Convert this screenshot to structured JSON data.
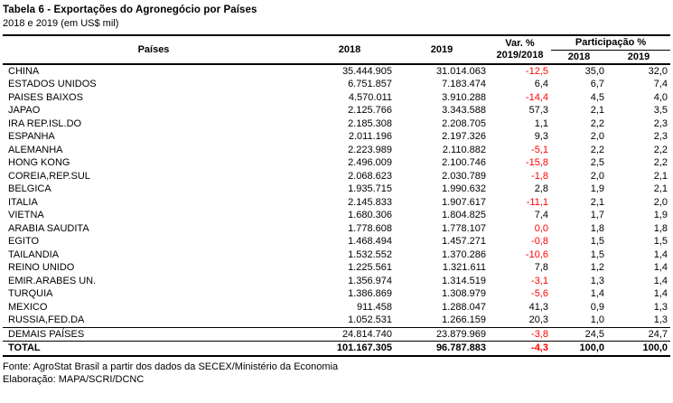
{
  "title": "Tabela 6 - Exportações do Agronegócio por Países",
  "subtitle": "2018 e 2019 (em US$ mil)",
  "colors": {
    "negative_value": "#FF0000",
    "text": "#000000",
    "border": "#000000"
  },
  "table": {
    "headers": {
      "paises": "Países",
      "col_2018": "2018",
      "col_2019": "2019",
      "var_line1": "Var. %",
      "var_line2": "2019/2018",
      "part_group": "Participação %",
      "part_2018": "2018",
      "part_2019": "2019"
    },
    "rows": [
      {
        "pais": "CHINA",
        "v2018": "35.444.905",
        "v2019": "31.014.063",
        "var": "-12,5",
        "var_red": true,
        "p2018": "35,0",
        "p2019": "32,0",
        "style": ""
      },
      {
        "pais": "ESTADOS UNIDOS",
        "v2018": "6.751.857",
        "v2019": "7.183.474",
        "var": "6,4",
        "var_red": false,
        "p2018": "6,7",
        "p2019": "7,4",
        "style": ""
      },
      {
        "pais": "PAISES BAIXOS",
        "v2018": "4.570.011",
        "v2019": "3.910.288",
        "var": "-14,4",
        "var_red": true,
        "p2018": "4,5",
        "p2019": "4,0",
        "style": ""
      },
      {
        "pais": "JAPAO",
        "v2018": "2.125.766",
        "v2019": "3.343.588",
        "var": "57,3",
        "var_red": false,
        "p2018": "2,1",
        "p2019": "3,5",
        "style": ""
      },
      {
        "pais": "IRA REP.ISL.DO",
        "v2018": "2.185.308",
        "v2019": "2.208.705",
        "var": "1,1",
        "var_red": false,
        "p2018": "2,2",
        "p2019": "2,3",
        "style": ""
      },
      {
        "pais": "ESPANHA",
        "v2018": "2.011.196",
        "v2019": "2.197.326",
        "var": "9,3",
        "var_red": false,
        "p2018": "2,0",
        "p2019": "2,3",
        "style": ""
      },
      {
        "pais": "ALEMANHA",
        "v2018": "2.223.989",
        "v2019": "2.110.882",
        "var": "-5,1",
        "var_red": true,
        "p2018": "2,2",
        "p2019": "2,2",
        "style": ""
      },
      {
        "pais": "HONG KONG",
        "v2018": "2.496.009",
        "v2019": "2.100.746",
        "var": "-15,8",
        "var_red": true,
        "p2018": "2,5",
        "p2019": "2,2",
        "style": ""
      },
      {
        "pais": "COREIA,REP.SUL",
        "v2018": "2.068.623",
        "v2019": "2.030.789",
        "var": "-1,8",
        "var_red": true,
        "p2018": "2,0",
        "p2019": "2,1",
        "style": ""
      },
      {
        "pais": "BELGICA",
        "v2018": "1.935.715",
        "v2019": "1.990.632",
        "var": "2,8",
        "var_red": false,
        "p2018": "1,9",
        "p2019": "2,1",
        "style": ""
      },
      {
        "pais": "ITALIA",
        "v2018": "2.145.833",
        "v2019": "1.907.617",
        "var": "-11,1",
        "var_red": true,
        "p2018": "2,1",
        "p2019": "2,0",
        "style": ""
      },
      {
        "pais": "VIETNA",
        "v2018": "1.680.306",
        "v2019": "1.804.825",
        "var": "7,4",
        "var_red": false,
        "p2018": "1,7",
        "p2019": "1,9",
        "style": ""
      },
      {
        "pais": "ARABIA SAUDITA",
        "v2018": "1.778.608",
        "v2019": "1.778.107",
        "var": "0,0",
        "var_red": true,
        "p2018": "1,8",
        "p2019": "1,8",
        "style": ""
      },
      {
        "pais": "EGITO",
        "v2018": "1.468.494",
        "v2019": "1.457.271",
        "var": "-0,8",
        "var_red": true,
        "p2018": "1,5",
        "p2019": "1,5",
        "style": ""
      },
      {
        "pais": "TAILANDIA",
        "v2018": "1.532.552",
        "v2019": "1.370.286",
        "var": "-10,6",
        "var_red": true,
        "p2018": "1,5",
        "p2019": "1,4",
        "style": ""
      },
      {
        "pais": "REINO UNIDO",
        "v2018": "1.225.561",
        "v2019": "1.321.611",
        "var": "7,8",
        "var_red": false,
        "p2018": "1,2",
        "p2019": "1,4",
        "style": ""
      },
      {
        "pais": "EMIR.ARABES UN.",
        "v2018": "1.356.974",
        "v2019": "1.314.519",
        "var": "-3,1",
        "var_red": true,
        "p2018": "1,3",
        "p2019": "1,4",
        "style": ""
      },
      {
        "pais": "TURQUIA",
        "v2018": "1.386.869",
        "v2019": "1.308.979",
        "var": "-5,6",
        "var_red": true,
        "p2018": "1,4",
        "p2019": "1,4",
        "style": ""
      },
      {
        "pais": "MEXICO",
        "v2018": "911.458",
        "v2019": "1.288.047",
        "var": "41,3",
        "var_red": false,
        "p2018": "0,9",
        "p2019": "1,3",
        "style": ""
      },
      {
        "pais": "RUSSIA,FED.DA",
        "v2018": "1.052.531",
        "v2019": "1.266.159",
        "var": "20,3",
        "var_red": false,
        "p2018": "1,0",
        "p2019": "1,3",
        "style": ""
      },
      {
        "pais": "DEMAIS PAÍSES",
        "v2018": "24.814.740",
        "v2019": "23.879.969",
        "var": "-3,8",
        "var_red": true,
        "p2018": "24,5",
        "p2019": "24,7",
        "style": "demais"
      },
      {
        "pais": "TOTAL",
        "v2018": "101.167.305",
        "v2019": "96.787.883",
        "var": "-4,3",
        "var_red": true,
        "p2018": "100,0",
        "p2019": "100,0",
        "style": "total"
      }
    ]
  },
  "footer": {
    "fonte": "Fonte: AgroStat Brasil a partir dos dados da SECEX/Ministério da Economia",
    "elaboracao": "Elaboração: MAPA/SCRI/DCNC"
  }
}
